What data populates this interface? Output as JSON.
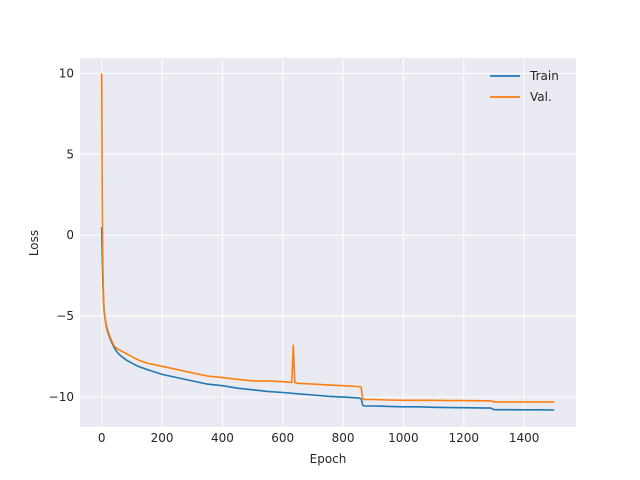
{
  "chart_data": {
    "type": "line",
    "title": "",
    "xlabel": "Epoch",
    "ylabel": "Loss",
    "xlim": [
      -72,
      1572
    ],
    "ylim": [
      -11.85,
      10.95
    ],
    "xticks": [
      0,
      200,
      400,
      600,
      800,
      1000,
      1200,
      1400
    ],
    "yticks": [
      -10,
      -5,
      0,
      5,
      10
    ],
    "grid": true,
    "legend_position": "top-right",
    "series": [
      {
        "name": "Train",
        "color": "#1f77b4",
        "x": [
          0,
          2,
          4,
          6,
          8,
          10,
          15,
          20,
          30,
          40,
          50,
          60,
          80,
          100,
          120,
          150,
          200,
          250,
          300,
          350,
          400,
          450,
          500,
          550,
          600,
          650,
          700,
          750,
          800,
          850,
          860,
          865,
          870,
          900,
          950,
          1000,
          1050,
          1100,
          1150,
          1200,
          1250,
          1290,
          1300,
          1350,
          1400,
          1450,
          1500
        ],
        "y": [
          0.5,
          -1.5,
          -3.0,
          -4.0,
          -4.6,
          -5.0,
          -5.6,
          -6.0,
          -6.5,
          -6.9,
          -7.2,
          -7.4,
          -7.7,
          -7.9,
          -8.1,
          -8.3,
          -8.6,
          -8.8,
          -9.0,
          -9.2,
          -9.3,
          -9.45,
          -9.55,
          -9.65,
          -9.72,
          -9.8,
          -9.87,
          -9.95,
          -10.0,
          -10.05,
          -10.1,
          -10.5,
          -10.55,
          -10.55,
          -10.58,
          -10.6,
          -10.6,
          -10.63,
          -10.65,
          -10.66,
          -10.67,
          -10.68,
          -10.78,
          -10.78,
          -10.79,
          -10.79,
          -10.8
        ]
      },
      {
        "name": "Val.",
        "color": "#ff7f0e",
        "x": [
          0,
          2,
          4,
          6,
          8,
          10,
          15,
          20,
          30,
          40,
          50,
          60,
          80,
          100,
          120,
          150,
          200,
          250,
          300,
          350,
          400,
          450,
          500,
          550,
          600,
          630,
          635,
          640,
          650,
          700,
          750,
          800,
          850,
          860,
          865,
          870,
          900,
          950,
          1000,
          1050,
          1100,
          1150,
          1200,
          1250,
          1290,
          1300,
          1350,
          1400,
          1450,
          1500
        ],
        "y": [
          10.0,
          2.0,
          -2.0,
          -3.8,
          -4.6,
          -5.0,
          -5.5,
          -5.9,
          -6.4,
          -6.8,
          -7.0,
          -7.1,
          -7.3,
          -7.5,
          -7.7,
          -7.9,
          -8.1,
          -8.3,
          -8.5,
          -8.7,
          -8.8,
          -8.9,
          -9.0,
          -9.0,
          -9.05,
          -9.1,
          -6.8,
          -9.1,
          -9.15,
          -9.2,
          -9.25,
          -9.3,
          -9.35,
          -9.4,
          -10.1,
          -10.15,
          -10.15,
          -10.18,
          -10.2,
          -10.2,
          -10.2,
          -10.22,
          -10.22,
          -10.23,
          -10.23,
          -10.3,
          -10.3,
          -10.3,
          -10.3,
          -10.3
        ]
      }
    ]
  }
}
